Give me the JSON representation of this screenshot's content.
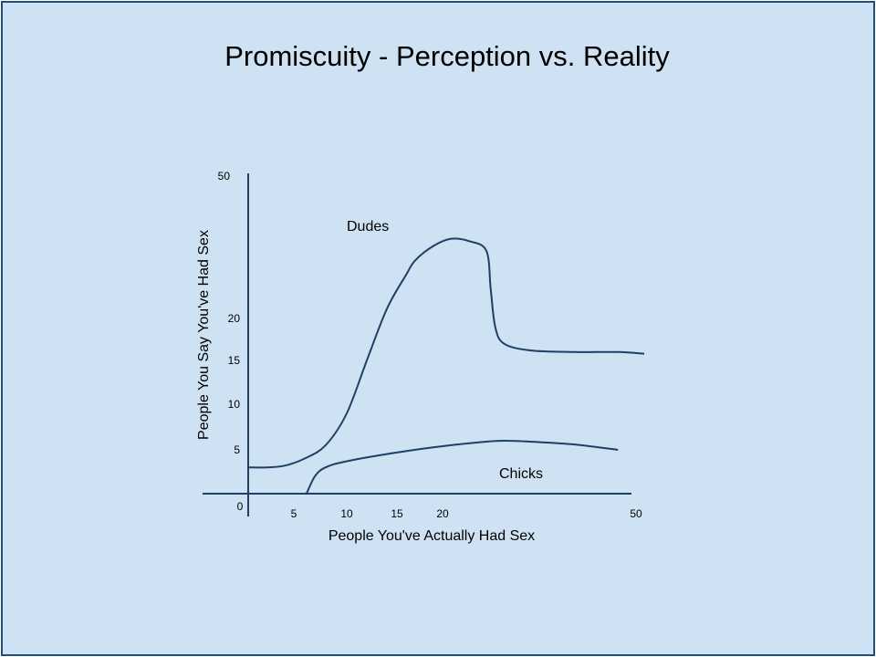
{
  "chart_data": {
    "type": "line",
    "title": "Promiscuity - Perception vs. Reality",
    "xlabel": "People You've Actually Had Sex",
    "ylabel": "People You Say You've Had Sex",
    "x_ticks": [
      "5",
      "10",
      "15",
      "20",
      "50"
    ],
    "y_ticks": [
      "5",
      "10",
      "15",
      "20",
      "50"
    ],
    "origin_label": "0",
    "grid": false,
    "legend": "none",
    "series": [
      {
        "name": "Dudes",
        "color": "#1f3f66",
        "points": [
          [
            0,
            3
          ],
          [
            2,
            3
          ],
          [
            4,
            3.2
          ],
          [
            6,
            4
          ],
          [
            8,
            5.5
          ],
          [
            10,
            9
          ],
          [
            12,
            15
          ],
          [
            14,
            22
          ],
          [
            16,
            29
          ],
          [
            17,
            32
          ],
          [
            19,
            35
          ],
          [
            21,
            36.5
          ],
          [
            23,
            36
          ],
          [
            25,
            34
          ],
          [
            25.5,
            26
          ],
          [
            26,
            19
          ],
          [
            27,
            17
          ],
          [
            30,
            16.2
          ],
          [
            35,
            16
          ],
          [
            40,
            16
          ],
          [
            43,
            15.8
          ]
        ]
      },
      {
        "name": "Chicks",
        "color": "#1f3f66",
        "points": [
          [
            6.2,
            0
          ],
          [
            7,
            2
          ],
          [
            8,
            3
          ],
          [
            10,
            3.7
          ],
          [
            15,
            4.7
          ],
          [
            20,
            5.4
          ],
          [
            25,
            5.9
          ],
          [
            27,
            6
          ],
          [
            30,
            5.9
          ],
          [
            35,
            5.6
          ],
          [
            40,
            5
          ]
        ]
      }
    ]
  }
}
